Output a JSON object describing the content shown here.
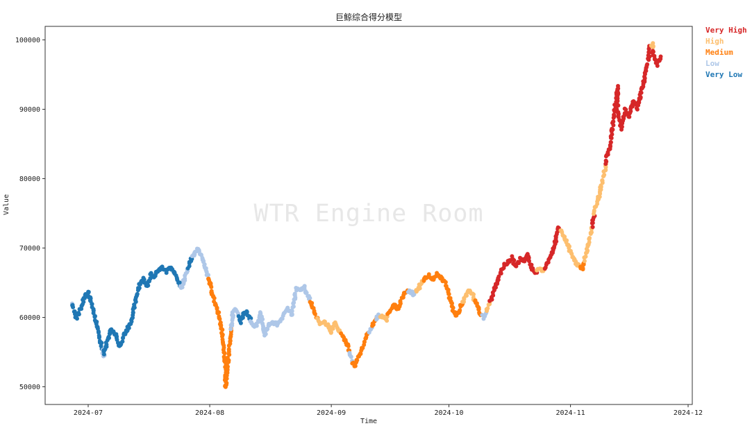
{
  "chart_data": {
    "type": "scatter",
    "title": "巨鲸综合得分模型",
    "xlabel": "Time",
    "ylabel": "Value",
    "watermark": "WTR Engine Room",
    "x_ticks": [
      "2024-07",
      "2024-08",
      "2024-09",
      "2024-10",
      "2024-11",
      "2024-12"
    ],
    "y_ticks": [
      50000,
      60000,
      70000,
      80000,
      90000,
      100000
    ],
    "ylim": [
      47500,
      102000
    ],
    "xlim": [
      "2024-06-20",
      "2024-12-02"
    ],
    "grid": false,
    "legend": {
      "position": "outside-upper-right",
      "entries": [
        {
          "key": "vh",
          "label": "Very High",
          "color": "#d62728"
        },
        {
          "key": "h",
          "label": "High",
          "color": "#fdbf6f"
        },
        {
          "key": "m",
          "label": "Medium",
          "color": "#ff7f0e"
        },
        {
          "key": "l",
          "label": "Low",
          "color": "#aec7e8"
        },
        {
          "key": "vl",
          "label": "Very Low",
          "color": "#1f77b4"
        }
      ]
    },
    "points": [
      [
        "2024-06-27",
        61800,
        "l"
      ],
      [
        "2024-06-27",
        61500,
        "vl"
      ],
      [
        "2024-06-28",
        60000,
        "vl"
      ],
      [
        "2024-06-29",
        61200,
        "vl"
      ],
      [
        "2024-06-30",
        62800,
        "vl"
      ],
      [
        "2024-07-01",
        63700,
        "vl"
      ],
      [
        "2024-07-02",
        61800,
        "vl"
      ],
      [
        "2024-07-03",
        59500,
        "vl"
      ],
      [
        "2024-07-04",
        56800,
        "vl"
      ],
      [
        "2024-07-05",
        54300,
        "l"
      ],
      [
        "2024-07-05",
        55200,
        "vl"
      ],
      [
        "2024-07-06",
        56800,
        "vl"
      ],
      [
        "2024-07-07",
        58300,
        "vl"
      ],
      [
        "2024-07-08",
        57600,
        "vl"
      ],
      [
        "2024-07-09",
        55800,
        "vl"
      ],
      [
        "2024-07-10",
        57300,
        "vl"
      ],
      [
        "2024-07-11",
        58300,
        "vl"
      ],
      [
        "2024-07-12",
        59600,
        "vl"
      ],
      [
        "2024-07-13",
        62200,
        "vl"
      ],
      [
        "2024-07-14",
        64600,
        "vl"
      ],
      [
        "2024-07-15",
        65500,
        "vl"
      ],
      [
        "2024-07-16",
        64400,
        "vl"
      ],
      [
        "2024-07-17",
        66300,
        "vl"
      ],
      [
        "2024-07-18",
        65800,
        "vl"
      ],
      [
        "2024-07-19",
        66900,
        "vl"
      ],
      [
        "2024-07-20",
        67300,
        "vl"
      ],
      [
        "2024-07-21",
        66600,
        "vl"
      ],
      [
        "2024-07-22",
        67400,
        "vl"
      ],
      [
        "2024-07-23",
        66300,
        "vl"
      ],
      [
        "2024-07-24",
        65100,
        "vl"
      ],
      [
        "2024-07-25",
        64300,
        "l"
      ],
      [
        "2024-07-26",
        66400,
        "l"
      ],
      [
        "2024-07-27",
        67900,
        "vl"
      ],
      [
        "2024-07-28",
        69200,
        "l"
      ],
      [
        "2024-07-29",
        69900,
        "l"
      ],
      [
        "2024-07-30",
        68700,
        "l"
      ],
      [
        "2024-07-31",
        66800,
        "l"
      ],
      [
        "2024-08-01",
        64900,
        "m"
      ],
      [
        "2024-08-02",
        62600,
        "m"
      ],
      [
        "2024-08-03",
        61200,
        "m"
      ],
      [
        "2024-08-04",
        58300,
        "m"
      ],
      [
        "2024-08-05",
        53200,
        "m"
      ],
      [
        "2024-08-05",
        49900,
        "m"
      ],
      [
        "2024-08-06",
        55800,
        "m"
      ],
      [
        "2024-08-07",
        61200,
        "l"
      ],
      [
        "2024-08-08",
        61000,
        "l"
      ],
      [
        "2024-08-09",
        59400,
        "vl"
      ],
      [
        "2024-08-10",
        60900,
        "vl"
      ],
      [
        "2024-08-11",
        60400,
        "vl"
      ],
      [
        "2024-08-12",
        58700,
        "l"
      ],
      [
        "2024-08-13",
        58900,
        "l"
      ],
      [
        "2024-08-14",
        60700,
        "l"
      ],
      [
        "2024-08-15",
        57600,
        "l"
      ],
      [
        "2024-08-16",
        58900,
        "l"
      ],
      [
        "2024-08-17",
        59300,
        "l"
      ],
      [
        "2024-08-18",
        59000,
        "l"
      ],
      [
        "2024-08-19",
        59400,
        "l"
      ],
      [
        "2024-08-20",
        60600,
        "l"
      ],
      [
        "2024-08-21",
        61300,
        "l"
      ],
      [
        "2024-08-22",
        60400,
        "l"
      ],
      [
        "2024-08-23",
        64100,
        "l"
      ],
      [
        "2024-08-24",
        64000,
        "l"
      ],
      [
        "2024-08-25",
        64400,
        "l"
      ],
      [
        "2024-08-26",
        63200,
        "l"
      ],
      [
        "2024-08-27",
        61800,
        "m"
      ],
      [
        "2024-08-28",
        60300,
        "m"
      ],
      [
        "2024-08-29",
        59100,
        "h"
      ],
      [
        "2024-08-30",
        59400,
        "h"
      ],
      [
        "2024-08-31",
        59000,
        "h"
      ],
      [
        "2024-09-01",
        57900,
        "h"
      ],
      [
        "2024-09-02",
        59300,
        "h"
      ],
      [
        "2024-09-03",
        58100,
        "h"
      ],
      [
        "2024-09-04",
        57300,
        "m"
      ],
      [
        "2024-09-05",
        56100,
        "m"
      ],
      [
        "2024-09-06",
        54100,
        "l"
      ],
      [
        "2024-09-07",
        52900,
        "m"
      ],
      [
        "2024-09-08",
        54400,
        "m"
      ],
      [
        "2024-09-09",
        55600,
        "m"
      ],
      [
        "2024-09-10",
        57400,
        "m"
      ],
      [
        "2024-09-11",
        58200,
        "l"
      ],
      [
        "2024-09-12",
        59300,
        "m"
      ],
      [
        "2024-09-13",
        60300,
        "l"
      ],
      [
        "2024-09-14",
        60100,
        "h"
      ],
      [
        "2024-09-15",
        59700,
        "h"
      ],
      [
        "2024-09-16",
        60900,
        "m"
      ],
      [
        "2024-09-17",
        61900,
        "m"
      ],
      [
        "2024-09-18",
        61200,
        "m"
      ],
      [
        "2024-09-19",
        62900,
        "m"
      ],
      [
        "2024-09-20",
        63600,
        "m"
      ],
      [
        "2024-09-21",
        63900,
        "l"
      ],
      [
        "2024-09-22",
        63400,
        "l"
      ],
      [
        "2024-09-23",
        64100,
        "h"
      ],
      [
        "2024-09-24",
        64900,
        "h"
      ],
      [
        "2024-09-25",
        65800,
        "m"
      ],
      [
        "2024-09-26",
        66100,
        "m"
      ],
      [
        "2024-09-27",
        65400,
        "m"
      ],
      [
        "2024-09-28",
        66200,
        "m"
      ],
      [
        "2024-09-29",
        65700,
        "m"
      ],
      [
        "2024-09-30",
        64900,
        "m"
      ],
      [
        "2024-10-01",
        63400,
        "m"
      ],
      [
        "2024-10-02",
        61000,
        "m"
      ],
      [
        "2024-10-03",
        60300,
        "m"
      ],
      [
        "2024-10-04",
        61600,
        "m"
      ],
      [
        "2024-10-05",
        62700,
        "h"
      ],
      [
        "2024-10-06",
        64000,
        "h"
      ],
      [
        "2024-10-07",
        63400,
        "h"
      ],
      [
        "2024-10-08",
        61900,
        "m"
      ],
      [
        "2024-10-09",
        60600,
        "m"
      ],
      [
        "2024-10-10",
        59900,
        "l"
      ],
      [
        "2024-10-11",
        61400,
        "h"
      ],
      [
        "2024-10-12",
        62900,
        "vh"
      ],
      [
        "2024-10-13",
        64700,
        "vh"
      ],
      [
        "2024-10-14",
        66200,
        "vh"
      ],
      [
        "2024-10-15",
        67400,
        "vh"
      ],
      [
        "2024-10-16",
        68000,
        "vh"
      ],
      [
        "2024-10-17",
        68600,
        "vh"
      ],
      [
        "2024-10-18",
        67300,
        "vh"
      ],
      [
        "2024-10-19",
        68400,
        "vh"
      ],
      [
        "2024-10-20",
        68000,
        "vh"
      ],
      [
        "2024-10-21",
        69100,
        "vh"
      ],
      [
        "2024-10-22",
        67200,
        "vh"
      ],
      [
        "2024-10-23",
        66400,
        "vh"
      ],
      [
        "2024-10-24",
        66900,
        "h"
      ],
      [
        "2024-10-25",
        66700,
        "h"
      ],
      [
        "2024-10-26",
        67600,
        "vh"
      ],
      [
        "2024-10-27",
        68800,
        "vh"
      ],
      [
        "2024-10-28",
        70700,
        "vh"
      ],
      [
        "2024-10-29",
        72800,
        "vh"
      ],
      [
        "2024-10-30",
        72300,
        "h"
      ],
      [
        "2024-10-31",
        70800,
        "h"
      ],
      [
        "2024-11-01",
        69400,
        "h"
      ],
      [
        "2024-11-02",
        68300,
        "h"
      ],
      [
        "2024-11-03",
        67400,
        "h"
      ],
      [
        "2024-11-04",
        67100,
        "m"
      ],
      [
        "2024-11-05",
        69300,
        "h"
      ],
      [
        "2024-11-06",
        71600,
        "h"
      ],
      [
        "2024-11-07",
        74600,
        "vh"
      ],
      [
        "2024-11-07",
        75600,
        "h"
      ],
      [
        "2024-11-08",
        76800,
        "h"
      ],
      [
        "2024-11-09",
        79300,
        "h"
      ],
      [
        "2024-11-10",
        81800,
        "h"
      ],
      [
        "2024-11-10",
        82600,
        "vh"
      ],
      [
        "2024-11-11",
        84500,
        "vh"
      ],
      [
        "2024-11-12",
        88600,
        "vh"
      ],
      [
        "2024-11-13",
        93200,
        "vh"
      ],
      [
        "2024-11-13",
        89500,
        "vh"
      ],
      [
        "2024-11-14",
        87300,
        "vh"
      ],
      [
        "2024-11-15",
        89900,
        "vh"
      ],
      [
        "2024-11-16",
        88900,
        "vh"
      ],
      [
        "2024-11-17",
        91100,
        "vh"
      ],
      [
        "2024-11-18",
        90200,
        "vh"
      ],
      [
        "2024-11-19",
        92600,
        "vh"
      ],
      [
        "2024-11-20",
        94800,
        "vh"
      ],
      [
        "2024-11-21",
        97600,
        "vh"
      ],
      [
        "2024-11-21",
        99100,
        "vh"
      ],
      [
        "2024-11-22",
        99400,
        "h"
      ],
      [
        "2024-11-22",
        98100,
        "vh"
      ],
      [
        "2024-11-23",
        96400,
        "vh"
      ],
      [
        "2024-11-24",
        97600,
        "vh"
      ]
    ]
  }
}
